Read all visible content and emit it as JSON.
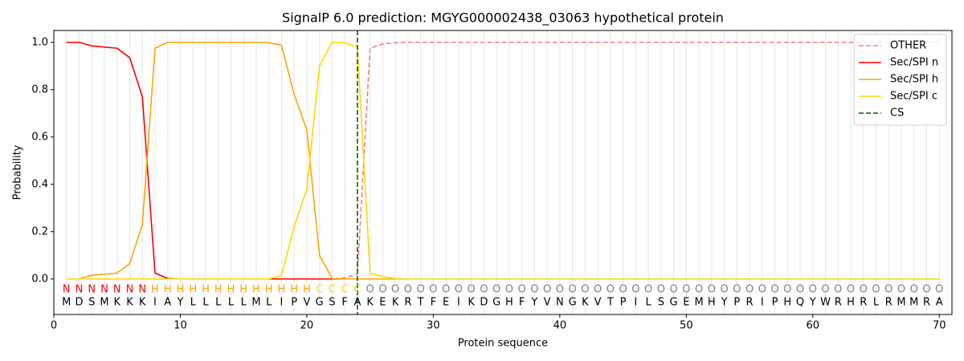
{
  "chart_data": {
    "type": "line",
    "title": "SignalP 6.0 prediction: MGYG000002438_03063 hypothetical protein",
    "x_label": "Protein sequence",
    "y_label": "Probability",
    "xlim": [
      0,
      71
    ],
    "ylim": [
      -0.15,
      1.05
    ],
    "xticks": [
      0,
      10,
      20,
      30,
      40,
      50,
      60,
      70
    ],
    "yticks": [
      {
        "value": 0,
        "label": "0.0"
      },
      {
        "value": 0.2,
        "label": "0.2"
      },
      {
        "value": 0.4,
        "label": "0.4"
      },
      {
        "value": 0.6,
        "label": "0.6"
      },
      {
        "value": 0.8,
        "label": "0.8"
      },
      {
        "value": 1,
        "label": "1.0"
      }
    ],
    "position_grid": true,
    "legend": "upper right",
    "x": [
      1,
      2,
      3,
      4,
      5,
      6,
      7,
      8,
      9,
      10,
      11,
      12,
      13,
      14,
      15,
      16,
      17,
      18,
      19,
      20,
      21,
      22,
      23,
      24,
      25,
      26,
      27,
      28,
      29,
      30,
      31,
      32,
      33,
      34,
      35,
      36,
      37,
      38,
      39,
      40,
      41,
      42,
      43,
      44,
      45,
      46,
      47,
      48,
      49,
      50,
      51,
      52,
      53,
      54,
      55,
      56,
      57,
      58,
      59,
      60,
      61,
      62,
      63,
      64,
      65,
      66,
      67,
      68,
      69,
      70
    ],
    "residues": [
      "M",
      "D",
      "S",
      "M",
      "K",
      "K",
      "K",
      "I",
      "A",
      "Y",
      "L",
      "L",
      "L",
      "L",
      "L",
      "M",
      "L",
      "I",
      "P",
      "V",
      "G",
      "S",
      "F",
      "A",
      "K",
      "E",
      "K",
      "R",
      "T",
      "F",
      "E",
      "I",
      "K",
      "D",
      "G",
      "H",
      "F",
      "Y",
      "V",
      "N",
      "G",
      "K",
      "V",
      "T",
      "P",
      "I",
      "L",
      "S",
      "G",
      "E",
      "M",
      "H",
      "Y",
      "P",
      "R",
      "I",
      "P",
      "H",
      "Q",
      "Y",
      "W",
      "R",
      "H",
      "R",
      "L",
      "R",
      "M",
      "M",
      "R",
      "A"
    ],
    "labels": [
      "N",
      "N",
      "N",
      "N",
      "N",
      "N",
      "N",
      "H",
      "H",
      "H",
      "H",
      "H",
      "H",
      "H",
      "H",
      "H",
      "H",
      "H",
      "H",
      "H",
      "C",
      "C",
      "C",
      "C",
      "O",
      "O",
      "O",
      "O",
      "O",
      "O",
      "O",
      "O",
      "O",
      "O",
      "O",
      "O",
      "O",
      "O",
      "O",
      "O",
      "O",
      "O",
      "O",
      "O",
      "O",
      "O",
      "O",
      "O",
      "O",
      "O",
      "O",
      "O",
      "O",
      "O",
      "O",
      "O",
      "O",
      "O",
      "O",
      "O",
      "O",
      "O",
      "O",
      "O",
      "O",
      "O",
      "O",
      "O",
      "O",
      "O"
    ],
    "label_colors": {
      "N": "red",
      "H": "orange",
      "C": "gold",
      "O": "gray"
    },
    "series": [
      {
        "name": "OTHER",
        "color": "lightcoral",
        "dashed": true,
        "values": [
          0,
          0,
          0,
          0,
          0,
          0,
          0,
          0,
          0,
          0,
          0,
          0,
          0,
          0,
          0,
          0,
          0,
          0,
          0,
          0,
          0,
          0,
          0.005,
          0.02,
          0.975,
          0.993,
          0.998,
          1,
          1,
          1,
          1,
          1,
          1,
          1,
          1,
          1,
          1,
          1,
          1,
          1,
          1,
          1,
          1,
          1,
          1,
          1,
          1,
          1,
          1,
          1,
          1,
          1,
          1,
          1,
          1,
          1,
          1,
          1,
          1,
          1,
          1,
          1,
          1,
          1,
          1,
          1,
          1,
          1,
          1,
          1
        ]
      },
      {
        "name": "Sec/SPI n",
        "color": "red",
        "values": [
          1,
          1,
          0.985,
          0.98,
          0.975,
          0.935,
          0.77,
          0.025,
          0.002,
          0,
          0,
          0,
          0,
          0,
          0,
          0,
          0,
          0,
          0,
          0,
          0,
          0,
          0,
          0,
          0,
          0,
          0,
          0,
          0,
          0,
          0,
          0,
          0,
          0,
          0,
          0,
          0,
          0,
          0,
          0,
          0,
          0,
          0,
          0,
          0,
          0,
          0,
          0,
          0,
          0,
          0,
          0,
          0,
          0,
          0,
          0,
          0,
          0,
          0,
          0,
          0,
          0,
          0,
          0,
          0,
          0,
          0,
          0,
          0,
          0
        ]
      },
      {
        "name": "Sec/SPI h",
        "color": "orange",
        "values": [
          0,
          0,
          0.015,
          0.02,
          0.025,
          0.065,
          0.23,
          0.975,
          1,
          1,
          1,
          1,
          1,
          1,
          1,
          1,
          0.998,
          0.988,
          0.78,
          0.63,
          0.1,
          0.002,
          0,
          0,
          0,
          0,
          0,
          0,
          0,
          0,
          0,
          0,
          0,
          0,
          0,
          0,
          0,
          0,
          0,
          0,
          0,
          0,
          0,
          0,
          0,
          0,
          0,
          0,
          0,
          0,
          0,
          0,
          0,
          0,
          0,
          0,
          0,
          0,
          0,
          0,
          0,
          0,
          0,
          0,
          0,
          0,
          0,
          0,
          0,
          0
        ]
      },
      {
        "name": "Sec/SPI c",
        "color": "gold",
        "values": [
          0,
          0,
          0,
          0,
          0,
          0,
          0,
          0,
          0,
          0,
          0,
          0,
          0,
          0,
          0,
          0,
          0,
          0.015,
          0.22,
          0.38,
          0.9,
          1,
          0.998,
          0.98,
          0.025,
          0.01,
          0.002,
          0,
          0,
          0,
          0,
          0,
          0,
          0,
          0,
          0,
          0,
          0,
          0,
          0,
          0,
          0,
          0,
          0,
          0,
          0,
          0,
          0,
          0,
          0,
          0,
          0,
          0,
          0,
          0,
          0,
          0,
          0,
          0,
          0,
          0,
          0,
          0,
          0,
          0,
          0,
          0,
          0,
          0,
          0
        ]
      }
    ],
    "cs": {
      "name": "CS",
      "x": 24,
      "color": "darkgreen"
    }
  }
}
